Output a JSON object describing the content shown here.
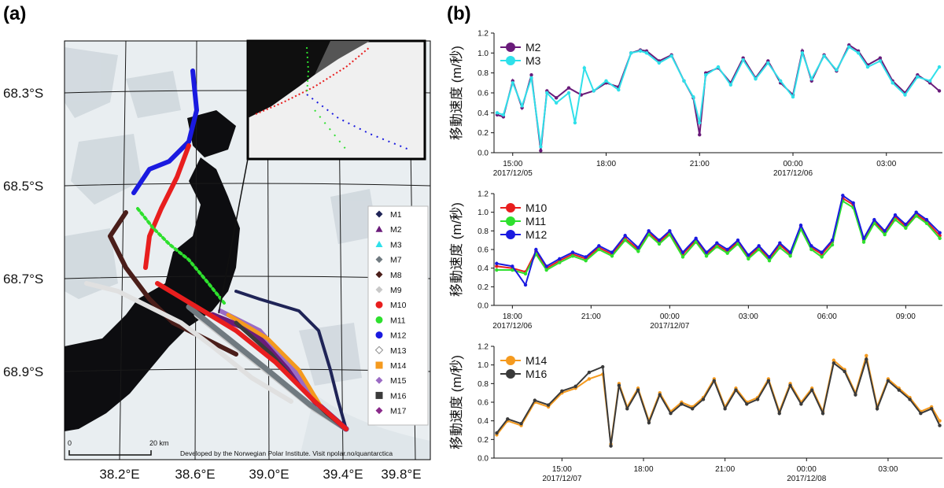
{
  "panel_a": {
    "label": "(a)",
    "lat_labels": [
      "68.3°S",
      "68.5°S",
      "68.7°S",
      "68.9°S"
    ],
    "lon_labels": [
      "38.2°E",
      "38.6°E",
      "39.0°E",
      "39.4°E",
      "39.8°E"
    ],
    "scale_start": "0",
    "scale_end": "20 km",
    "credit": "Developed by the Norwegian Polar Institute. Visit npolar.no/quantarctica",
    "legend": [
      {
        "name": "M1",
        "color": "#1f2457",
        "marker": "diamond"
      },
      {
        "name": "M2",
        "color": "#6a1b7a",
        "marker": "triangle"
      },
      {
        "name": "M3",
        "color": "#2fe0ea",
        "marker": "triangle"
      },
      {
        "name": "M7",
        "color": "#707a80",
        "marker": "diamond"
      },
      {
        "name": "M8",
        "color": "#4a1e1a",
        "marker": "diamond"
      },
      {
        "name": "M9",
        "color": "#c8c8c8",
        "marker": "diamond"
      },
      {
        "name": "M10",
        "color": "#e81e1e",
        "marker": "circle"
      },
      {
        "name": "M11",
        "color": "#2ee02e",
        "marker": "circle"
      },
      {
        "name": "M12",
        "color": "#1a1ae0",
        "marker": "circle"
      },
      {
        "name": "M13",
        "color": "#ffffff",
        "marker": "diamond-open"
      },
      {
        "name": "M14",
        "color": "#f59a1e",
        "marker": "square"
      },
      {
        "name": "M15",
        "color": "#9b6bc4",
        "marker": "diamond"
      },
      {
        "name": "M16",
        "color": "#3a3a3a",
        "marker": "square"
      },
      {
        "name": "M17",
        "color": "#8a2a8a",
        "marker": "diamond"
      }
    ]
  },
  "panel_b": {
    "label": "(b)"
  },
  "chart_data": [
    {
      "type": "line",
      "ylabel": "移動速度 (m/秒)",
      "ylim": [
        0,
        1.2
      ],
      "yticks": [
        0.0,
        0.2,
        0.4,
        0.6,
        0.8,
        1.0,
        1.2
      ],
      "xlim": [
        -0.6,
        13.8
      ],
      "xticks": [
        {
          "x": 0,
          "label": "15:00",
          "date": "2017/12/05"
        },
        {
          "x": 3,
          "label": "18:00",
          "date": ""
        },
        {
          "x": 6,
          "label": "21:00",
          "date": ""
        },
        {
          "x": 9,
          "label": "00:00",
          "date": "2017/12/06"
        },
        {
          "x": 12,
          "label": "03:00",
          "date": ""
        }
      ],
      "legend": "top-left",
      "series": [
        {
          "name": "M2",
          "color": "#6a1b7a",
          "x": [
            -0.5,
            -0.3,
            0.0,
            0.3,
            0.6,
            0.9,
            1.1,
            1.4,
            1.8,
            2.2,
            2.6,
            3.0,
            3.4,
            3.8,
            4.1,
            4.3,
            4.7,
            5.1,
            5.5,
            5.8,
            6.0,
            6.2,
            6.6,
            7.0,
            7.4,
            7.8,
            8.2,
            8.6,
            9.0,
            9.3,
            9.6,
            10.0,
            10.4,
            10.8,
            11.1,
            11.4,
            11.8,
            12.2,
            12.6,
            13.0,
            13.4,
            13.7
          ],
          "y": [
            0.38,
            0.36,
            0.72,
            0.45,
            0.78,
            0.02,
            0.62,
            0.55,
            0.65,
            0.58,
            0.62,
            0.7,
            0.66,
            1.0,
            1.03,
            1.02,
            0.92,
            0.98,
            0.72,
            0.55,
            0.18,
            0.8,
            0.85,
            0.7,
            0.95,
            0.75,
            0.92,
            0.7,
            0.58,
            1.02,
            0.72,
            0.98,
            0.82,
            1.08,
            1.02,
            0.88,
            0.95,
            0.72,
            0.6,
            0.78,
            0.7,
            0.62
          ]
        },
        {
          "name": "M3",
          "color": "#2fe0ea",
          "x": [
            -0.5,
            -0.3,
            0.0,
            0.3,
            0.6,
            0.9,
            1.1,
            1.4,
            1.8,
            2.0,
            2.3,
            2.6,
            3.0,
            3.4,
            3.8,
            4.1,
            4.3,
            4.7,
            5.1,
            5.5,
            5.8,
            6.0,
            6.2,
            6.6,
            7.0,
            7.4,
            7.8,
            8.2,
            8.6,
            9.0,
            9.3,
            9.6,
            10.0,
            10.4,
            10.8,
            11.1,
            11.4,
            11.8,
            12.2,
            12.6,
            13.0,
            13.4,
            13.7
          ],
          "y": [
            0.4,
            0.38,
            0.7,
            0.47,
            0.75,
            0.06,
            0.6,
            0.5,
            0.6,
            0.3,
            0.85,
            0.62,
            0.72,
            0.63,
            1.0,
            1.02,
            1.0,
            0.9,
            0.97,
            0.72,
            0.56,
            0.3,
            0.78,
            0.86,
            0.68,
            0.93,
            0.74,
            0.9,
            0.72,
            0.56,
            1.0,
            0.74,
            0.97,
            0.83,
            1.06,
            1.0,
            0.86,
            0.92,
            0.7,
            0.58,
            0.76,
            0.72,
            0.86
          ]
        }
      ]
    },
    {
      "type": "line",
      "ylabel": "移動速度 (m/秒)",
      "ylim": [
        0,
        1.2
      ],
      "yticks": [
        0.0,
        0.2,
        0.4,
        0.6,
        0.8,
        1.0,
        1.2
      ],
      "xlim": [
        -0.7,
        16.4
      ],
      "xticks": [
        {
          "x": 0,
          "label": "18:00",
          "date": "2017/12/06"
        },
        {
          "x": 3,
          "label": "21:00",
          "date": ""
        },
        {
          "x": 6,
          "label": "00:00",
          "date": "2017/12/07"
        },
        {
          "x": 9,
          "label": "03:00",
          "date": ""
        },
        {
          "x": 12,
          "label": "06:00",
          "date": ""
        },
        {
          "x": 15,
          "label": "09:00",
          "date": ""
        }
      ],
      "legend": "top-left",
      "series": [
        {
          "name": "M10",
          "color": "#e81e1e",
          "x": [
            -0.6,
            0.0,
            0.5,
            0.9,
            1.3,
            1.8,
            2.3,
            2.8,
            3.3,
            3.8,
            4.3,
            4.8,
            5.2,
            5.6,
            6.0,
            6.5,
            7.0,
            7.4,
            7.8,
            8.2,
            8.6,
            9.0,
            9.4,
            9.8,
            10.2,
            10.6,
            11.0,
            11.4,
            11.8,
            12.2,
            12.6,
            13.0,
            13.4,
            13.8,
            14.2,
            14.6,
            15.0,
            15.4,
            15.8,
            16.3
          ],
          "y": [
            0.42,
            0.4,
            0.36,
            0.58,
            0.4,
            0.48,
            0.55,
            0.5,
            0.62,
            0.55,
            0.72,
            0.6,
            0.78,
            0.68,
            0.78,
            0.55,
            0.7,
            0.55,
            0.65,
            0.58,
            0.68,
            0.52,
            0.62,
            0.5,
            0.65,
            0.55,
            0.84,
            0.62,
            0.55,
            0.68,
            1.15,
            1.08,
            0.7,
            0.9,
            0.78,
            0.95,
            0.85,
            0.98,
            0.9,
            0.75
          ]
        },
        {
          "name": "M11",
          "color": "#2ee02e",
          "x": [
            -0.6,
            0.0,
            0.5,
            0.9,
            1.3,
            1.8,
            2.3,
            2.8,
            3.3,
            3.8,
            4.3,
            4.8,
            5.2,
            5.6,
            6.0,
            6.5,
            7.0,
            7.4,
            7.8,
            8.2,
            8.6,
            9.0,
            9.4,
            9.8,
            10.2,
            10.6,
            11.0,
            11.4,
            11.8,
            12.2,
            12.6,
            13.0,
            13.4,
            13.8,
            14.2,
            14.6,
            15.0,
            15.4,
            15.8,
            16.3
          ],
          "y": [
            0.38,
            0.38,
            0.34,
            0.55,
            0.38,
            0.46,
            0.53,
            0.48,
            0.6,
            0.53,
            0.7,
            0.58,
            0.76,
            0.66,
            0.76,
            0.52,
            0.68,
            0.53,
            0.63,
            0.56,
            0.66,
            0.5,
            0.6,
            0.48,
            0.62,
            0.53,
            0.82,
            0.6,
            0.52,
            0.65,
            1.12,
            1.05,
            0.68,
            0.88,
            0.76,
            0.92,
            0.83,
            0.96,
            0.88,
            0.72
          ]
        },
        {
          "name": "M12",
          "color": "#1a1ae0",
          "x": [
            -0.6,
            0.0,
            0.5,
            0.9,
            1.3,
            1.8,
            2.3,
            2.8,
            3.3,
            3.8,
            4.3,
            4.8,
            5.2,
            5.6,
            6.0,
            6.5,
            7.0,
            7.4,
            7.8,
            8.2,
            8.6,
            9.0,
            9.4,
            9.8,
            10.2,
            10.6,
            11.0,
            11.4,
            11.8,
            12.2,
            12.6,
            13.0,
            13.4,
            13.8,
            14.2,
            14.6,
            15.0,
            15.4,
            15.8,
            16.3
          ],
          "y": [
            0.45,
            0.42,
            0.22,
            0.6,
            0.42,
            0.5,
            0.57,
            0.52,
            0.64,
            0.57,
            0.75,
            0.62,
            0.8,
            0.7,
            0.8,
            0.57,
            0.72,
            0.57,
            0.67,
            0.6,
            0.7,
            0.54,
            0.64,
            0.52,
            0.67,
            0.57,
            0.86,
            0.64,
            0.57,
            0.7,
            1.18,
            1.1,
            0.72,
            0.92,
            0.8,
            0.97,
            0.87,
            1.0,
            0.92,
            0.78
          ]
        }
      ]
    },
    {
      "type": "line",
      "ylabel": "移動速度 (m/秒)",
      "ylim": [
        0,
        1.2
      ],
      "yticks": [
        0.0,
        0.2,
        0.4,
        0.6,
        0.8,
        1.0,
        1.2
      ],
      "xlim": [
        -2.5,
        14.0
      ],
      "xticks": [
        {
          "x": 0,
          "label": "15:00",
          "date": "2017/12/07"
        },
        {
          "x": 3,
          "label": "18:00",
          "date": ""
        },
        {
          "x": 6,
          "label": "21:00",
          "date": ""
        },
        {
          "x": 9,
          "label": "00:00",
          "date": "2017/12/08"
        },
        {
          "x": 12,
          "label": "03:00",
          "date": ""
        }
      ],
      "legend": "top-left",
      "series": [
        {
          "name": "M14",
          "color": "#f59a1e",
          "x": [
            -2.4,
            -2.0,
            -1.5,
            -1.0,
            -0.5,
            0.0,
            0.5,
            1.0,
            1.5,
            1.8,
            2.1,
            2.4,
            2.8,
            3.2,
            3.6,
            4.0,
            4.4,
            4.8,
            5.2,
            5.6,
            6.0,
            6.4,
            6.8,
            7.2,
            7.6,
            8.0,
            8.4,
            8.8,
            9.2,
            9.6,
            10.0,
            10.4,
            10.8,
            11.2,
            11.6,
            12.0,
            12.4,
            12.8,
            13.2,
            13.6,
            13.9
          ],
          "y": [
            0.25,
            0.4,
            0.35,
            0.6,
            0.55,
            0.7,
            0.75,
            0.85,
            0.9,
            0.15,
            0.8,
            0.55,
            0.75,
            0.4,
            0.7,
            0.5,
            0.6,
            0.55,
            0.65,
            0.85,
            0.55,
            0.75,
            0.6,
            0.65,
            0.85,
            0.5,
            0.8,
            0.6,
            0.75,
            0.5,
            1.05,
            0.95,
            0.7,
            1.1,
            0.55,
            0.85,
            0.75,
            0.65,
            0.5,
            0.55,
            0.4
          ]
        },
        {
          "name": "M16",
          "color": "#3a3a3a",
          "x": [
            -2.4,
            -2.0,
            -1.5,
            -1.0,
            -0.5,
            0.0,
            0.5,
            1.0,
            1.5,
            1.8,
            2.1,
            2.4,
            2.8,
            3.2,
            3.6,
            4.0,
            4.4,
            4.8,
            5.2,
            5.6,
            6.0,
            6.4,
            6.8,
            7.2,
            7.6,
            8.0,
            8.4,
            8.8,
            9.2,
            9.6,
            10.0,
            10.4,
            10.8,
            11.2,
            11.6,
            12.0,
            12.4,
            12.8,
            13.2,
            13.6,
            13.9
          ],
          "y": [
            0.27,
            0.42,
            0.37,
            0.62,
            0.57,
            0.72,
            0.77,
            0.92,
            0.98,
            0.13,
            0.78,
            0.53,
            0.73,
            0.38,
            0.68,
            0.48,
            0.58,
            0.53,
            0.63,
            0.83,
            0.53,
            0.73,
            0.58,
            0.63,
            0.83,
            0.48,
            0.78,
            0.58,
            0.73,
            0.48,
            1.02,
            0.93,
            0.68,
            1.06,
            0.53,
            0.83,
            0.73,
            0.63,
            0.48,
            0.53,
            0.35
          ]
        }
      ]
    }
  ]
}
